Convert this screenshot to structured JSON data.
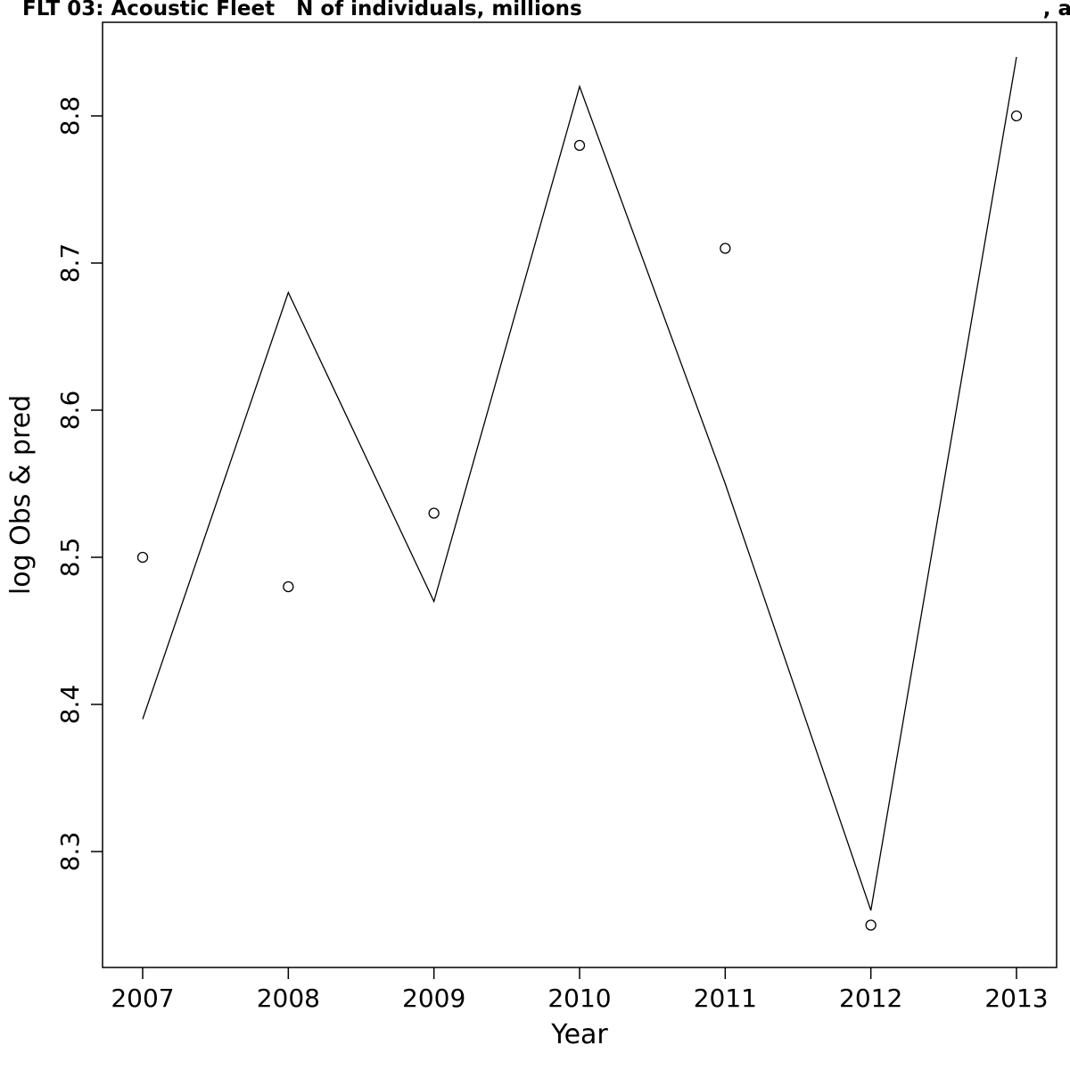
{
  "title": {
    "main": "FLT 03: Acoustic Fleet   N of individuals, millions",
    "clipped_fragment": ", a"
  },
  "axes": {
    "xlabel": "Year",
    "ylabel": "log Obs & pred",
    "x_ticks": [
      2007,
      2008,
      2009,
      2010,
      2011,
      2012,
      2013
    ],
    "y_ticks": [
      "8.3",
      "8.4",
      "8.5",
      "8.6",
      "8.7",
      "8.8"
    ]
  },
  "colors": {
    "foreground": "#000000",
    "background": "#ffffff"
  },
  "chart_data": {
    "type": "line",
    "title": "FLT 03: Acoustic Fleet   N of individuals, millions",
    "xlabel": "Year",
    "ylabel": "log Obs & pred",
    "x": [
      2007,
      2008,
      2009,
      2010,
      2011,
      2012,
      2013
    ],
    "series": [
      {
        "name": "observed",
        "style": "points",
        "marker": "open-circle",
        "values": [
          8.5,
          8.48,
          8.53,
          8.78,
          8.71,
          8.25,
          8.8
        ]
      },
      {
        "name": "predicted",
        "style": "line",
        "values": [
          8.39,
          8.68,
          8.47,
          8.82,
          8.55,
          8.26,
          8.84
        ]
      }
    ],
    "xlim": [
      2007,
      2013
    ],
    "ylim": [
      8.22,
      8.86
    ],
    "grid": false,
    "legend": "none"
  }
}
